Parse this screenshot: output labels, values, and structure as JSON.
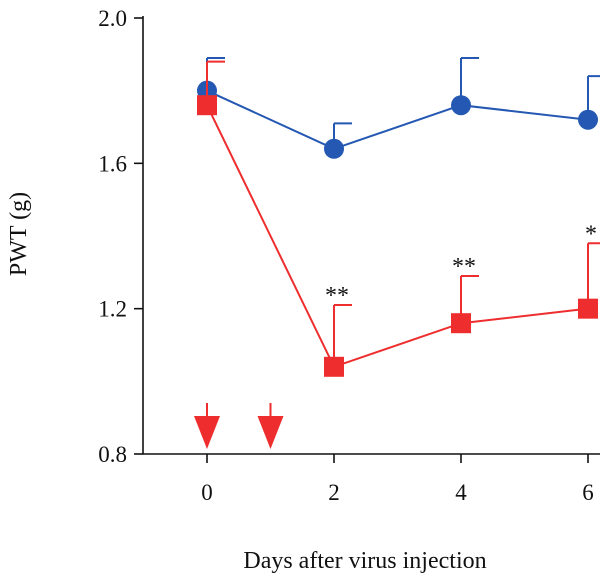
{
  "chart_data": {
    "type": "line",
    "xlabel": "Days after virus injection",
    "ylabel": "PWT (g)",
    "x": [
      0,
      2,
      4,
      6
    ],
    "xticks": [
      "0",
      "2",
      "4",
      "6"
    ],
    "yticks": [
      "0.8",
      "1.2",
      "1.6",
      "2.0"
    ],
    "ylim": [
      0.8,
      2.0
    ],
    "xlim": [
      -1,
      6.3
    ],
    "series": [
      {
        "values": [
          1.8,
          1.64,
          1.76,
          1.72
        ],
        "error": [
          0.09,
          0.07,
          0.13,
          0.12
        ],
        "color": "#2458b3",
        "marker": "circle"
      },
      {
        "values": [
          1.76,
          1.04,
          1.16,
          1.2
        ],
        "error": [
          0.12,
          0.17,
          0.13,
          0.18
        ],
        "color": "#ee2e2e",
        "marker": "square"
      }
    ],
    "annotations": [
      {
        "x": 2,
        "text": "**"
      },
      {
        "x": 4,
        "text": "**"
      },
      {
        "x": 6,
        "text": "*"
      }
    ],
    "arrows": [
      {
        "x": 0,
        "color": "#ee2e2e"
      },
      {
        "x": 1,
        "color": "#ee2e2e"
      }
    ],
    "grid": false,
    "legend": "none"
  }
}
